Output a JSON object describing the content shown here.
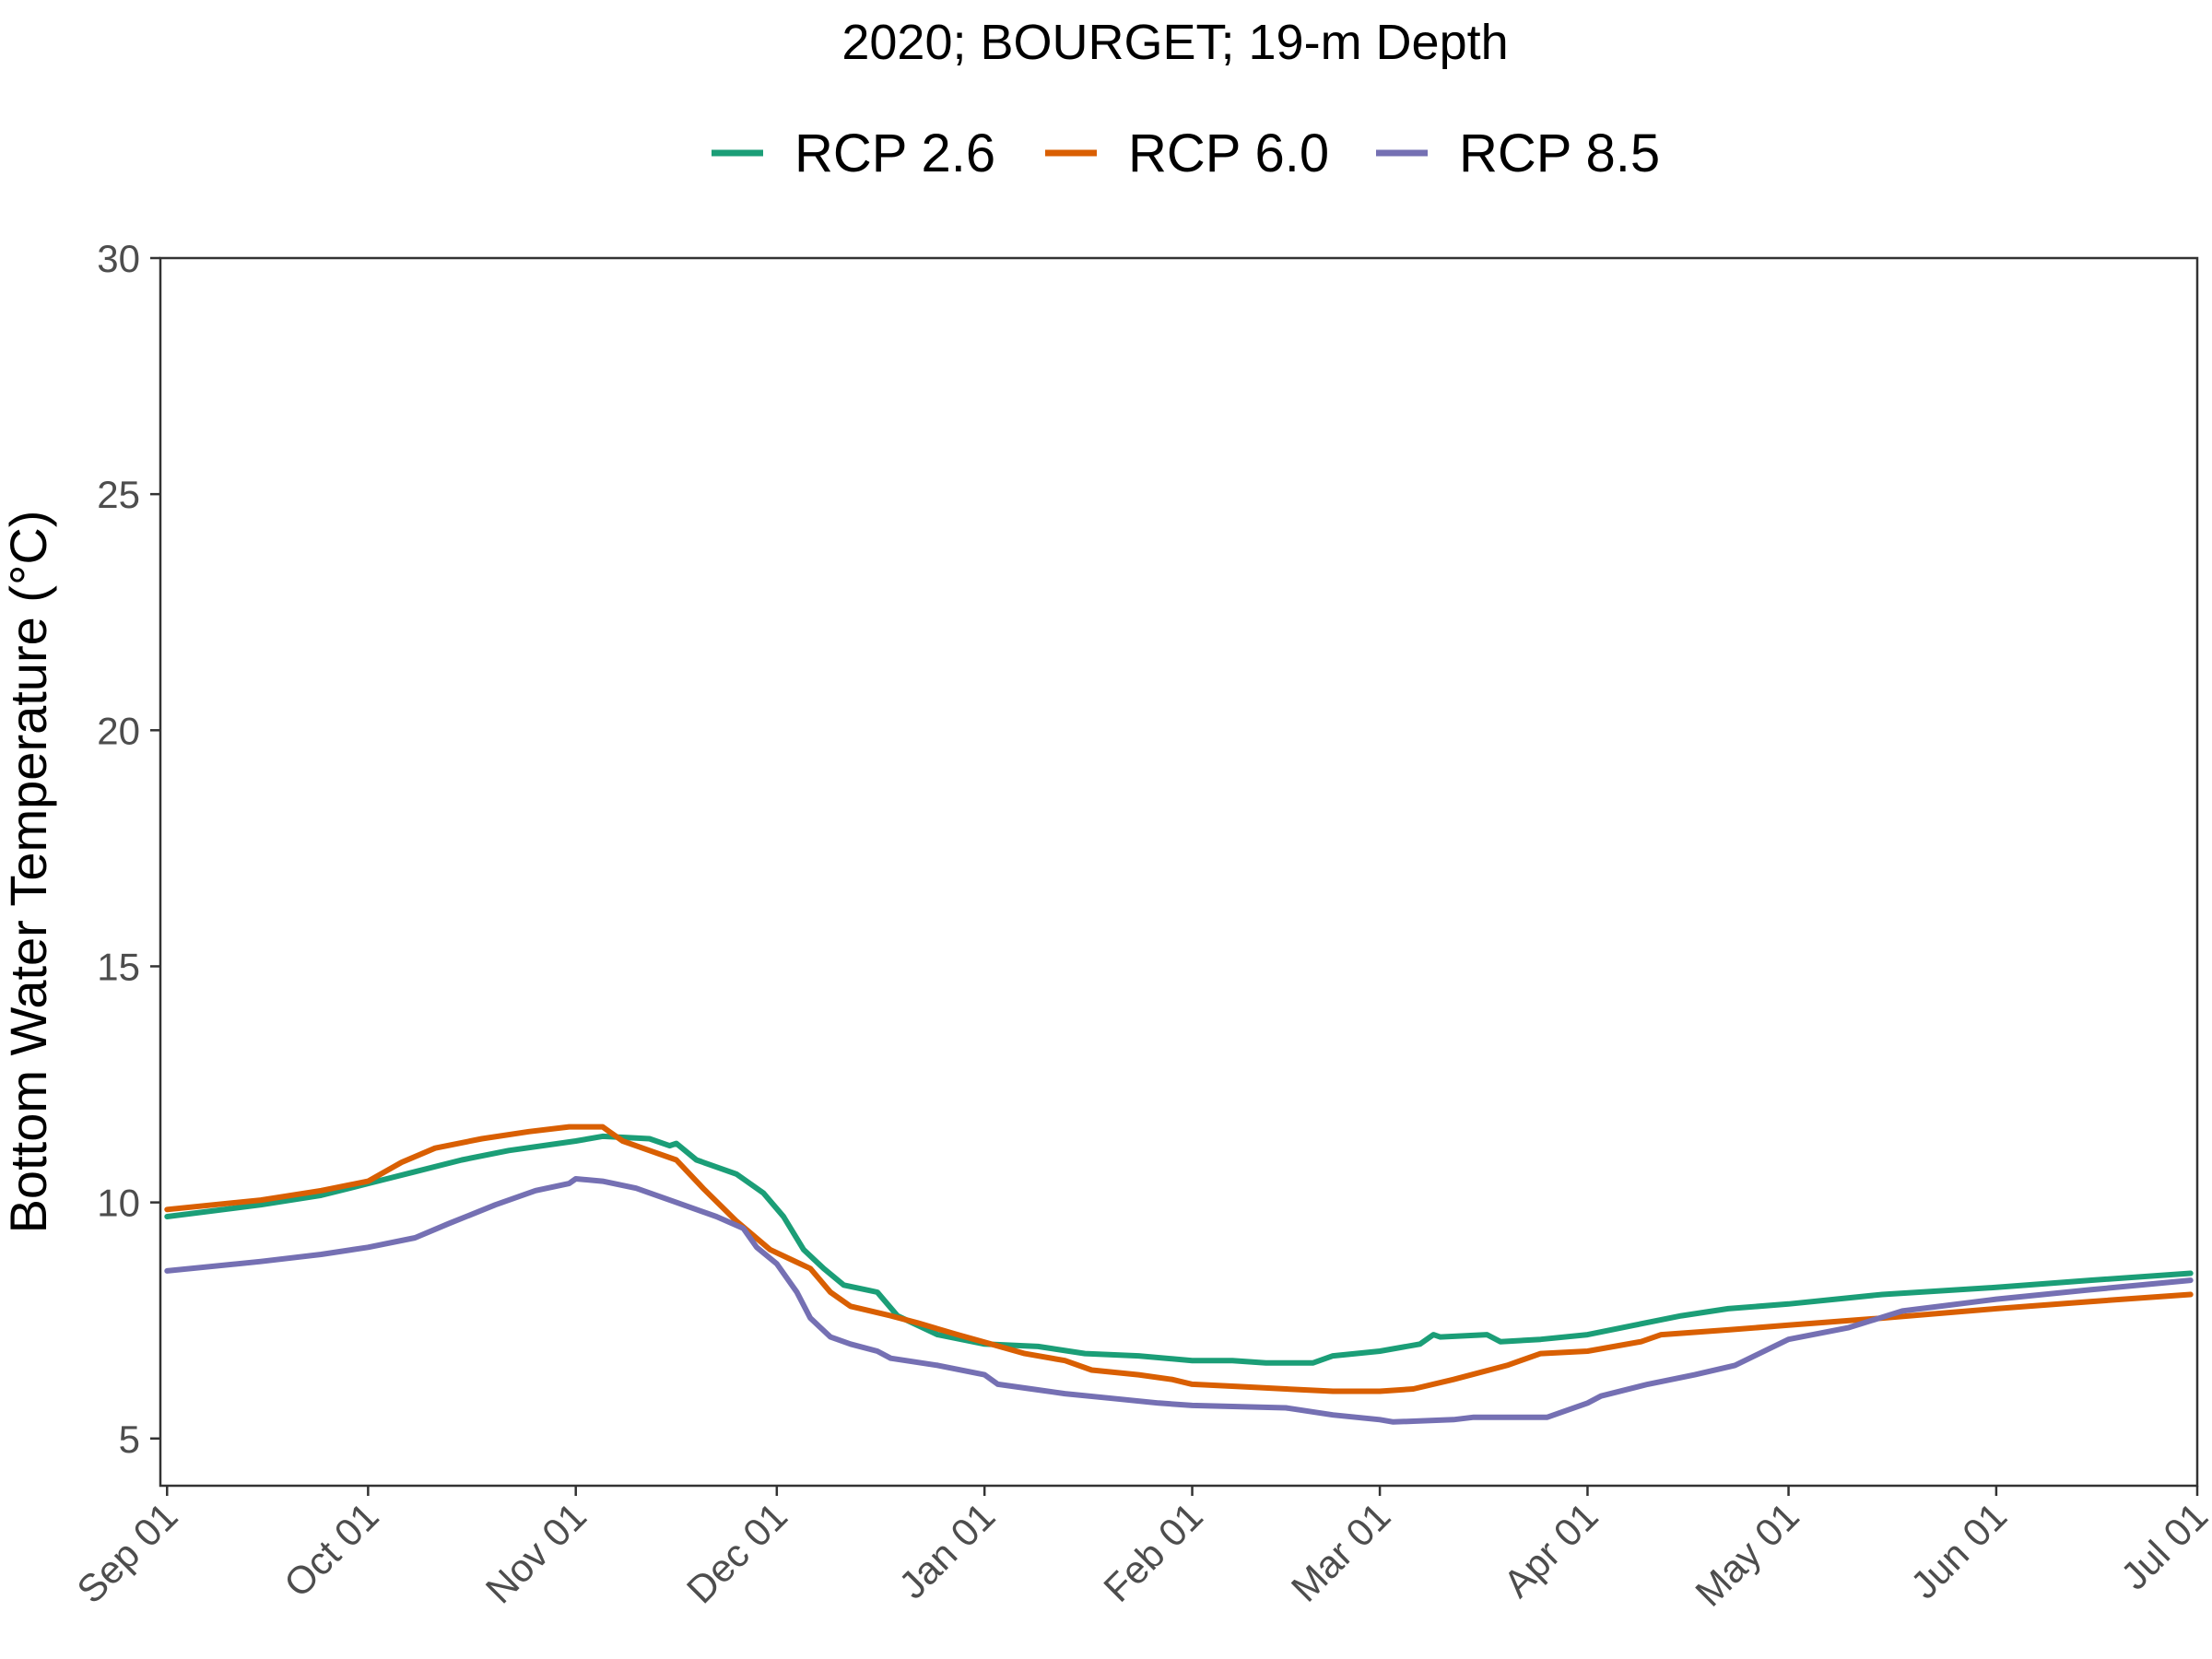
{
  "chart_data": {
    "type": "line",
    "title": "2020; BOURGET; 19-m Depth",
    "xlabel": "",
    "ylabel": "Bottom Water Temperature (°C)",
    "ylim": [
      4,
      30
    ],
    "yticks": [
      5,
      10,
      15,
      20,
      25,
      30
    ],
    "xlim": [
      "2020-08-31",
      "2021-07-01"
    ],
    "xticks": [
      {
        "date": "2020-09-01",
        "label": "Sep 01"
      },
      {
        "date": "2020-10-01",
        "label": "Oct 01"
      },
      {
        "date": "2020-11-01",
        "label": "Nov 01"
      },
      {
        "date": "2020-12-01",
        "label": "Dec 01"
      },
      {
        "date": "2021-01-01",
        "label": "Jan 01"
      },
      {
        "date": "2021-02-01",
        "label": "Feb 01"
      },
      {
        "date": "2021-03-01",
        "label": "Mar 01"
      },
      {
        "date": "2021-04-01",
        "label": "Apr 01"
      },
      {
        "date": "2021-05-01",
        "label": "May 01"
      },
      {
        "date": "2021-06-01",
        "label": "Jun 01"
      },
      {
        "date": "2021-07-01",
        "label": "Jul 01"
      }
    ],
    "grid": false,
    "legend_position": "top",
    "series": [
      {
        "name": "RCP 2.6",
        "color": "#1b9e77",
        "points": [
          [
            "2020-09-01",
            9.7
          ],
          [
            "2020-09-15",
            9.95
          ],
          [
            "2020-09-24",
            10.15
          ],
          [
            "2020-10-01",
            10.4
          ],
          [
            "2020-10-08",
            10.65
          ],
          [
            "2020-10-15",
            10.9
          ],
          [
            "2020-10-22",
            11.1
          ],
          [
            "2020-11-01",
            11.3
          ],
          [
            "2020-11-05",
            11.4
          ],
          [
            "2020-11-12",
            11.35
          ],
          [
            "2020-11-15",
            11.2
          ],
          [
            "2020-11-16",
            11.25
          ],
          [
            "2020-11-19",
            10.9
          ],
          [
            "2020-11-25",
            10.6
          ],
          [
            "2020-11-29",
            10.2
          ],
          [
            "2020-12-02",
            9.7
          ],
          [
            "2020-12-05",
            9.0
          ],
          [
            "2020-12-08",
            8.6
          ],
          [
            "2020-12-11",
            8.25
          ],
          [
            "2020-12-16",
            8.1
          ],
          [
            "2020-12-19",
            7.6
          ],
          [
            "2020-12-25",
            7.2
          ],
          [
            "2021-01-01",
            7.0
          ],
          [
            "2021-01-09",
            6.95
          ],
          [
            "2021-01-16",
            6.8
          ],
          [
            "2021-01-24",
            6.75
          ],
          [
            "2021-02-01",
            6.65
          ],
          [
            "2021-02-07",
            6.65
          ],
          [
            "2021-02-12",
            6.6
          ],
          [
            "2021-02-19",
            6.6
          ],
          [
            "2021-02-22",
            6.75
          ],
          [
            "2021-03-01",
            6.85
          ],
          [
            "2021-03-07",
            7.0
          ],
          [
            "2021-03-09",
            7.2
          ],
          [
            "2021-03-10",
            7.15
          ],
          [
            "2021-03-17",
            7.2
          ],
          [
            "2021-03-19",
            7.05
          ],
          [
            "2021-03-25",
            7.1
          ],
          [
            "2021-04-01",
            7.2
          ],
          [
            "2021-04-08",
            7.4
          ],
          [
            "2021-04-15",
            7.6
          ],
          [
            "2021-04-22",
            7.75
          ],
          [
            "2021-05-01",
            7.85
          ],
          [
            "2021-05-15",
            8.05
          ],
          [
            "2021-06-01",
            8.2
          ],
          [
            "2021-06-15",
            8.35
          ],
          [
            "2021-06-30",
            8.5
          ]
        ]
      },
      {
        "name": "RCP 6.0",
        "color": "#d95f02",
        "points": [
          [
            "2020-09-01",
            9.85
          ],
          [
            "2020-09-15",
            10.05
          ],
          [
            "2020-09-24",
            10.25
          ],
          [
            "2020-10-01",
            10.45
          ],
          [
            "2020-10-06",
            10.85
          ],
          [
            "2020-10-11",
            11.15
          ],
          [
            "2020-10-18",
            11.35
          ],
          [
            "2020-10-25",
            11.5
          ],
          [
            "2020-10-31",
            11.6
          ],
          [
            "2020-11-05",
            11.6
          ],
          [
            "2020-11-06",
            11.5
          ],
          [
            "2020-11-08",
            11.3
          ],
          [
            "2020-11-12",
            11.1
          ],
          [
            "2020-11-16",
            10.9
          ],
          [
            "2020-11-20",
            10.3
          ],
          [
            "2020-11-25",
            9.6
          ],
          [
            "2020-11-30",
            9.0
          ],
          [
            "2020-12-03",
            8.8
          ],
          [
            "2020-12-06",
            8.6
          ],
          [
            "2020-12-09",
            8.1
          ],
          [
            "2020-12-12",
            7.8
          ],
          [
            "2020-12-18",
            7.6
          ],
          [
            "2020-12-22",
            7.45
          ],
          [
            "2020-12-28",
            7.2
          ],
          [
            "2021-01-02",
            7.0
          ],
          [
            "2021-01-07",
            6.8
          ],
          [
            "2021-01-13",
            6.65
          ],
          [
            "2021-01-17",
            6.45
          ],
          [
            "2021-01-24",
            6.35
          ],
          [
            "2021-01-29",
            6.25
          ],
          [
            "2021-02-01",
            6.15
          ],
          [
            "2021-02-08",
            6.1
          ],
          [
            "2021-02-15",
            6.05
          ],
          [
            "2021-02-22",
            6.0
          ],
          [
            "2021-03-01",
            6.0
          ],
          [
            "2021-03-06",
            6.05
          ],
          [
            "2021-03-12",
            6.25
          ],
          [
            "2021-03-20",
            6.55
          ],
          [
            "2021-03-25",
            6.8
          ],
          [
            "2021-04-01",
            6.85
          ],
          [
            "2021-04-09",
            7.05
          ],
          [
            "2021-04-12",
            7.2
          ],
          [
            "2021-04-22",
            7.3
          ],
          [
            "2021-05-01",
            7.4
          ],
          [
            "2021-05-15",
            7.55
          ],
          [
            "2021-06-01",
            7.75
          ],
          [
            "2021-06-15",
            7.9
          ],
          [
            "2021-06-30",
            8.05
          ]
        ]
      },
      {
        "name": "RCP 8.5",
        "color": "#7570b3",
        "points": [
          [
            "2020-09-01",
            8.55
          ],
          [
            "2020-09-15",
            8.75
          ],
          [
            "2020-09-24",
            8.9
          ],
          [
            "2020-10-01",
            9.05
          ],
          [
            "2020-10-08",
            9.25
          ],
          [
            "2020-10-13",
            9.55
          ],
          [
            "2020-10-20",
            9.95
          ],
          [
            "2020-10-26",
            10.25
          ],
          [
            "2020-10-31",
            10.4
          ],
          [
            "2020-11-01",
            10.5
          ],
          [
            "2020-11-05",
            10.45
          ],
          [
            "2020-11-10",
            10.3
          ],
          [
            "2020-11-16",
            10.0
          ],
          [
            "2020-11-22",
            9.7
          ],
          [
            "2020-11-26",
            9.45
          ],
          [
            "2020-11-28",
            9.05
          ],
          [
            "2020-12-01",
            8.7
          ],
          [
            "2020-12-04",
            8.1
          ],
          [
            "2020-12-06",
            7.55
          ],
          [
            "2020-12-09",
            7.15
          ],
          [
            "2020-12-12",
            7.0
          ],
          [
            "2020-12-16",
            6.85
          ],
          [
            "2020-12-18",
            6.7
          ],
          [
            "2020-12-25",
            6.55
          ],
          [
            "2021-01-01",
            6.35
          ],
          [
            "2021-01-03",
            6.15
          ],
          [
            "2021-01-08",
            6.05
          ],
          [
            "2021-01-13",
            5.95
          ],
          [
            "2021-01-20",
            5.85
          ],
          [
            "2021-01-27",
            5.75
          ],
          [
            "2021-02-01",
            5.7
          ],
          [
            "2021-02-15",
            5.65
          ],
          [
            "2021-02-22",
            5.5
          ],
          [
            "2021-03-01",
            5.4
          ],
          [
            "2021-03-03",
            5.35
          ],
          [
            "2021-03-12",
            5.4
          ],
          [
            "2021-03-15",
            5.45
          ],
          [
            "2021-03-19",
            5.45
          ],
          [
            "2021-03-26",
            5.45
          ],
          [
            "2021-04-01",
            5.75
          ],
          [
            "2021-04-03",
            5.9
          ],
          [
            "2021-04-10",
            6.15
          ],
          [
            "2021-04-17",
            6.35
          ],
          [
            "2021-04-23",
            6.55
          ],
          [
            "2021-05-01",
            7.1
          ],
          [
            "2021-05-10",
            7.35
          ],
          [
            "2021-05-18",
            7.7
          ],
          [
            "2021-06-01",
            7.95
          ],
          [
            "2021-06-15",
            8.15
          ],
          [
            "2021-06-30",
            8.35
          ]
        ]
      }
    ]
  }
}
